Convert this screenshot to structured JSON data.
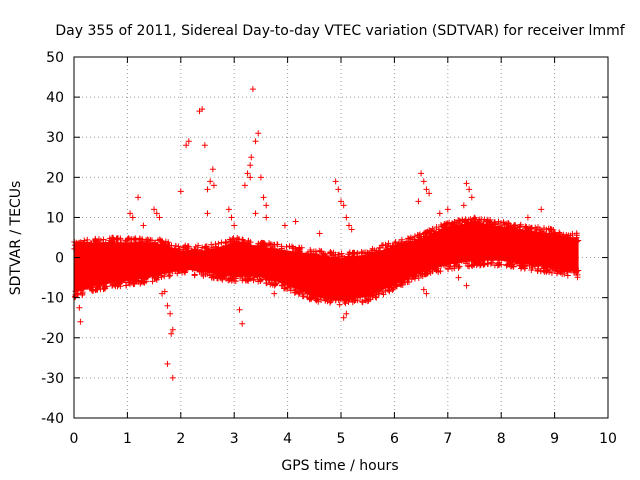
{
  "chart_data": {
    "type": "scatter",
    "title": "Day 355 of 2011, Sidereal Day-to-day VTEC variation (SDTVAR) for receiver lmmf",
    "xlabel": "GPS time / hours",
    "ylabel": "SDTVAR / TECUs",
    "xlim": [
      0,
      10
    ],
    "ylim": [
      -40,
      50
    ],
    "xticks": [
      0,
      1,
      2,
      3,
      4,
      5,
      6,
      7,
      8,
      9,
      10
    ],
    "yticks": [
      -40,
      -30,
      -20,
      -10,
      0,
      10,
      20,
      30,
      40,
      50
    ],
    "grid": true,
    "marker": "+",
    "color": "#ff0000",
    "series": [
      {
        "name": "SDTVAR",
        "band": {
          "description": "dense point cloud spanning roughly these bounds",
          "x": [
            0.0,
            0.5,
            1.0,
            1.5,
            2.0,
            2.5,
            3.0,
            3.5,
            4.0,
            4.5,
            5.0,
            5.5,
            6.0,
            6.5,
            7.0,
            7.5,
            8.0,
            8.5,
            9.0,
            9.45
          ],
          "upper": [
            4,
            5,
            5,
            5,
            3,
            3,
            5,
            4,
            3,
            2,
            1,
            2,
            4,
            6,
            9,
            10,
            9,
            8,
            7,
            6
          ],
          "lower": [
            -10,
            -8,
            -7,
            -6,
            -4,
            -5,
            -6,
            -6,
            -8,
            -11,
            -12,
            -11,
            -8,
            -5,
            -3,
            -2,
            -2,
            -3,
            -4,
            -5
          ]
        },
        "outliers": [
          [
            0.1,
            -12.5
          ],
          [
            0.12,
            -16
          ],
          [
            0.08,
            3.5
          ],
          [
            1.05,
            11
          ],
          [
            1.1,
            10
          ],
          [
            1.2,
            15
          ],
          [
            1.3,
            8
          ],
          [
            1.5,
            12
          ],
          [
            1.55,
            11
          ],
          [
            1.6,
            10
          ],
          [
            1.65,
            -9
          ],
          [
            1.7,
            -8.5
          ],
          [
            1.75,
            -12
          ],
          [
            1.8,
            -14
          ],
          [
            1.82,
            -19
          ],
          [
            1.85,
            -18
          ],
          [
            1.75,
            -26.5
          ],
          [
            1.85,
            -30
          ],
          [
            2.0,
            16.5
          ],
          [
            2.1,
            28
          ],
          [
            2.15,
            29
          ],
          [
            2.35,
            36.5
          ],
          [
            2.4,
            37
          ],
          [
            2.45,
            28
          ],
          [
            2.5,
            17
          ],
          [
            2.55,
            19
          ],
          [
            2.6,
            22
          ],
          [
            2.62,
            18
          ],
          [
            2.5,
            11
          ],
          [
            2.9,
            12
          ],
          [
            2.95,
            10
          ],
          [
            3.0,
            8
          ],
          [
            3.1,
            -13
          ],
          [
            3.15,
            -16.5
          ],
          [
            3.25,
            21
          ],
          [
            3.3,
            23
          ],
          [
            3.32,
            25
          ],
          [
            3.35,
            42
          ],
          [
            3.4,
            29
          ],
          [
            3.45,
            31
          ],
          [
            3.5,
            20
          ],
          [
            3.55,
            15
          ],
          [
            3.6,
            13
          ],
          [
            3.3,
            20
          ],
          [
            3.2,
            18
          ],
          [
            3.4,
            11
          ],
          [
            3.6,
            10
          ],
          [
            3.75,
            -9
          ],
          [
            3.95,
            8
          ],
          [
            4.15,
            9
          ],
          [
            4.6,
            6
          ],
          [
            4.9,
            19
          ],
          [
            4.95,
            17
          ],
          [
            5.0,
            14
          ],
          [
            5.05,
            13
          ],
          [
            5.1,
            10
          ],
          [
            5.15,
            8
          ],
          [
            5.05,
            -15
          ],
          [
            5.1,
            -14
          ],
          [
            5.2,
            7
          ],
          [
            6.5,
            21
          ],
          [
            6.55,
            19
          ],
          [
            6.6,
            17
          ],
          [
            6.65,
            16
          ],
          [
            6.45,
            14
          ],
          [
            6.55,
            -8
          ],
          [
            6.6,
            -9
          ],
          [
            6.85,
            11
          ],
          [
            7.0,
            12
          ],
          [
            7.3,
            13
          ],
          [
            7.35,
            18.5
          ],
          [
            7.4,
            17
          ],
          [
            7.45,
            15
          ],
          [
            7.2,
            -5
          ],
          [
            7.35,
            -7
          ],
          [
            8.75,
            12
          ],
          [
            8.5,
            10
          ]
        ]
      }
    ]
  }
}
